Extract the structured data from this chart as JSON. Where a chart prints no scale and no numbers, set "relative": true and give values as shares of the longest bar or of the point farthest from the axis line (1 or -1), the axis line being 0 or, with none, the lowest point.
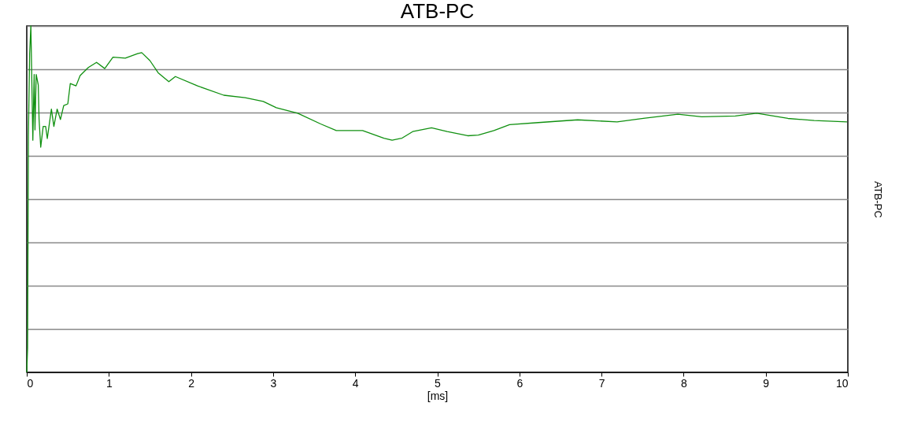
{
  "chart_data": {
    "type": "line",
    "title": "ATB-PC",
    "xlabel": "[ms]",
    "ylabel": "ATB-PC",
    "relative": true,
    "grid": "y",
    "xlim": [
      0,
      10
    ],
    "xticks": [
      0,
      1,
      2,
      3,
      4,
      5,
      6,
      7,
      8,
      9,
      10
    ],
    "x": [
      0,
      0.01,
      0.02,
      0.035,
      0.05,
      0.074,
      0.09,
      0.1,
      0.115,
      0.14,
      0.15,
      0.17,
      0.2,
      0.23,
      0.25,
      0.3,
      0.33,
      0.37,
      0.41,
      0.45,
      0.5,
      0.53,
      0.6,
      0.65,
      0.75,
      0.85,
      0.95,
      1.05,
      1.2,
      1.35,
      1.4,
      1.5,
      1.6,
      1.73,
      1.81,
      2.08,
      2.4,
      2.66,
      2.88,
      3.04,
      3.3,
      3.58,
      3.77,
      4.09,
      4.35,
      4.45,
      4.57,
      4.7,
      4.93,
      5.12,
      5.37,
      5.5,
      5.69,
      5.88,
      6.23,
      6.71,
      7.19,
      7.51,
      7.93,
      8.22,
      8.63,
      8.89,
      9.27,
      9.59,
      9.99
    ],
    "series": [
      {
        "color": "#109010",
        "values": [
          0,
          0.07,
          0.68,
          0.92,
          1.0,
          0.67,
          0.86,
          0.7,
          0.86,
          0.83,
          0.73,
          0.65,
          0.71,
          0.71,
          0.675,
          0.76,
          0.71,
          0.76,
          0.73,
          0.77,
          0.775,
          0.834,
          0.827,
          0.857,
          0.88,
          0.895,
          0.877,
          0.91,
          0.907,
          0.92,
          0.923,
          0.9,
          0.865,
          0.839,
          0.854,
          0.827,
          0.8,
          0.793,
          0.782,
          0.764,
          0.748,
          0.717,
          0.698,
          0.698,
          0.676,
          0.67,
          0.676,
          0.695,
          0.706,
          0.695,
          0.683,
          0.685,
          0.698,
          0.715,
          0.721,
          0.729,
          0.723,
          0.733,
          0.745,
          0.738,
          0.74,
          0.748,
          0.733,
          0.727,
          0.723
        ]
      }
    ]
  }
}
